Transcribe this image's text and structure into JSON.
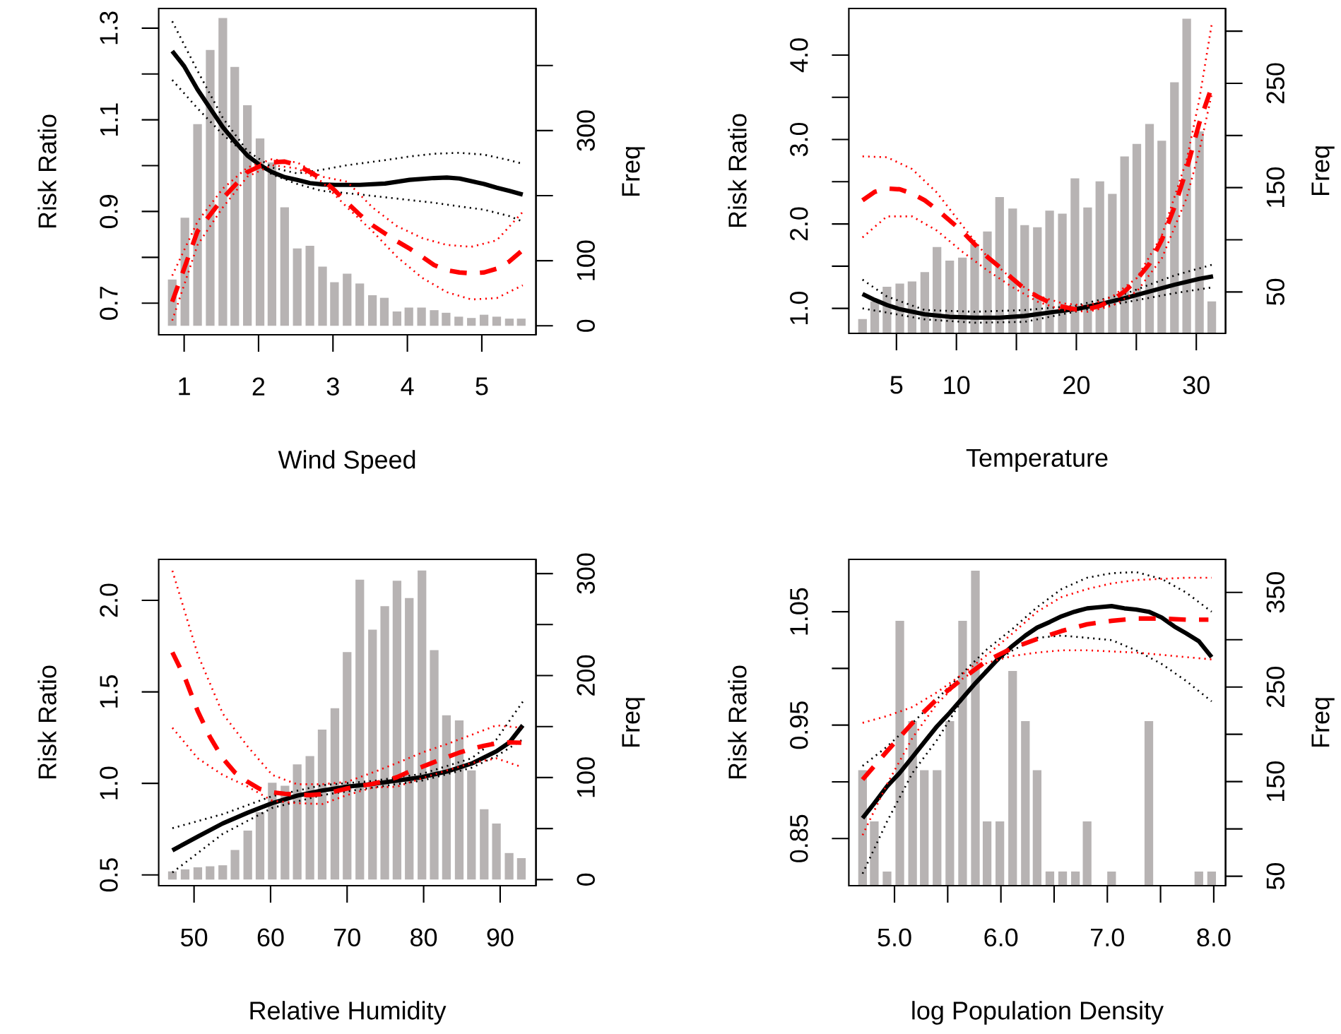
{
  "chart_data": [
    {
      "type": "line",
      "xlabel": "Wind Speed",
      "ylabel": "Risk Ratio",
      "y2label": "Freq",
      "xlim": [
        0.658,
        5.728
      ],
      "xticks": [
        1,
        2,
        3,
        4,
        5
      ],
      "ylim": [
        0.631,
        1.343
      ],
      "yticks": [
        0.7,
        {
          "value": 0.8,
          "label": null
        },
        0.9,
        {
          "value": 1.0,
          "label": null
        },
        1.1,
        {
          "value": 1.2,
          "label": null
        },
        1.3
      ],
      "y2lim": [
        -13.8,
        487.7
      ],
      "y2ticks": [
        0,
        100,
        {
          "value": 200,
          "label": null
        },
        300,
        {
          "value": 400,
          "label": null
        }
      ],
      "series": [
        {
          "type": "bar",
          "axis": "y2",
          "color": "#b7b3b3",
          "x": [
            0.84,
            1.01,
            1.18,
            1.35,
            1.52,
            1.68,
            1.85,
            2.02,
            2.18,
            2.35,
            2.52,
            2.69,
            2.86,
            3.02,
            3.19,
            3.36,
            3.53,
            3.69,
            3.86,
            4.02,
            4.19,
            4.36,
            4.52,
            4.69,
            4.86,
            5.03,
            5.2,
            5.37,
            5.53
          ],
          "values": [
            71,
            166,
            310,
            424,
            473,
            398,
            339,
            288,
            251,
            182,
            119,
            123,
            91,
            67,
            80,
            65,
            47,
            43,
            22,
            28,
            28,
            24,
            20,
            14,
            12,
            17,
            14,
            11,
            11
          ]
        },
        {
          "color": "#000000",
          "line_style": "solid",
          "x": [
            0.84,
            1.0,
            1.18,
            1.35,
            1.52,
            1.68,
            1.85,
            2.02,
            2.18,
            2.35,
            2.52,
            2.69,
            2.86,
            3.03,
            3.19,
            3.36,
            3.7,
            4.03,
            4.36,
            4.53,
            4.7,
            4.86,
            5.03,
            5.2,
            5.37,
            5.55
          ],
          "values": [
            1.25,
            1.217,
            1.166,
            1.125,
            1.084,
            1.053,
            1.022,
            1.001,
            0.986,
            0.975,
            0.969,
            0.962,
            0.959,
            0.958,
            0.958,
            0.958,
            0.961,
            0.969,
            0.973,
            0.974,
            0.972,
            0.966,
            0.96,
            0.952,
            0.945,
            0.937
          ]
        },
        {
          "color": "#000000",
          "line_style": "dotted",
          "x": [
            0.84,
            1.18,
            1.52,
            1.85,
            2.18,
            2.52,
            2.85,
            3.19,
            3.7,
            4.03,
            4.36,
            4.7,
            5.03,
            5.37,
            5.55
          ],
          "values": [
            1.315,
            1.207,
            1.104,
            1.032,
            0.996,
            0.983,
            0.991,
            1.001,
            1.012,
            1.02,
            1.026,
            1.028,
            1.024,
            1.012,
            1.004
          ]
        },
        {
          "color": "#000000",
          "line_style": "dotted",
          "x": [
            0.84,
            1.18,
            1.52,
            1.85,
            2.18,
            2.52,
            2.85,
            3.19,
            3.7,
            4.03,
            4.36,
            4.7,
            5.03,
            5.37,
            5.55
          ],
          "values": [
            1.187,
            1.125,
            1.068,
            1.022,
            0.981,
            0.96,
            0.945,
            0.94,
            0.931,
            0.925,
            0.919,
            0.911,
            0.904,
            0.89,
            0.878
          ]
        },
        {
          "color": "#ff0000",
          "line_style": "dashed",
          "x": [
            0.84,
            1.18,
            1.52,
            1.85,
            2.02,
            2.18,
            2.35,
            2.52,
            2.69,
            2.85,
            3.03,
            3.19,
            3.36,
            3.53,
            3.7,
            3.86,
            4.03,
            4.2,
            4.36,
            4.53,
            4.7,
            4.86,
            5.03,
            5.2,
            5.37,
            5.55
          ],
          "values": [
            0.703,
            0.857,
            0.929,
            0.986,
            0.999,
            1.007,
            1.009,
            1.001,
            0.986,
            0.971,
            0.945,
            0.919,
            0.893,
            0.87,
            0.852,
            0.835,
            0.819,
            0.801,
            0.783,
            0.772,
            0.767,
            0.765,
            0.767,
            0.775,
            0.791,
            0.816
          ]
        },
        {
          "color": "#ff0000",
          "line_style": "dotted",
          "x": [
            0.84,
            1.18,
            1.52,
            1.85,
            2.18,
            2.52,
            2.85,
            3.19,
            3.53,
            3.86,
            4.2,
            4.53,
            4.86,
            5.2,
            5.55
          ],
          "values": [
            0.76,
            0.878,
            0.95,
            0.996,
            1.014,
            1.007,
            0.976,
            0.965,
            0.909,
            0.868,
            0.842,
            0.827,
            0.823,
            0.837,
            0.899
          ]
        },
        {
          "color": "#ff0000",
          "line_style": "dotted",
          "x": [
            0.84,
            1.18,
            1.52,
            1.85,
            2.18,
            2.52,
            2.85,
            3.19,
            3.53,
            3.86,
            4.2,
            4.53,
            4.86,
            5.2,
            5.55
          ],
          "values": [
            0.662,
            0.827,
            0.909,
            0.976,
            1.001,
            0.994,
            0.965,
            0.909,
            0.857,
            0.801,
            0.755,
            0.724,
            0.708,
            0.711,
            0.739
          ]
        }
      ]
    },
    {
      "type": "line",
      "xlabel": "Temperature",
      "ylabel": "Risk Ratio",
      "y2label": "Freq",
      "xlim": [
        1.03,
        32.44
      ],
      "xticks": [
        5,
        10,
        {
          "value": 15,
          "label": null
        },
        20,
        {
          "value": 25,
          "label": null
        },
        30
      ],
      "ylim": [
        0.704,
        4.552
      ],
      "yticks": [
        {
          "value": 1.0,
          "label": "1.0"
        },
        {
          "value": 1.5,
          "label": null
        },
        {
          "value": 2.0,
          "label": "2.0"
        },
        {
          "value": 2.5,
          "label": null
        },
        {
          "value": 3.0,
          "label": "3.0"
        },
        {
          "value": 3.5,
          "label": null
        },
        {
          "value": 4.0,
          "label": "4.0"
        }
      ],
      "y2lim": [
        10.3,
        321.8
      ],
      "y2ticks": [
        50,
        {
          "value": 100,
          "label": null
        },
        150,
        {
          "value": 200,
          "label": null
        },
        250,
        {
          "value": 300,
          "label": null
        }
      ],
      "series": [
        {
          "type": "bar",
          "axis": "y2",
          "color": "#b7b3b3",
          "x": [
            2.17,
            3.19,
            4.21,
            5.28,
            6.3,
            7.36,
            8.38,
            9.44,
            10.5,
            11.52,
            12.58,
            13.6,
            14.69,
            15.69,
            16.75,
            17.77,
            18.83,
            19.88,
            20.94,
            21.96,
            23.0,
            24.02,
            25.04,
            26.1,
            27.12,
            28.18,
            29.2,
            30.26,
            31.29
          ],
          "values": [
            24,
            41,
            55,
            58,
            60,
            69,
            93,
            80,
            83,
            96,
            108,
            141,
            130,
            114,
            112,
            128,
            125,
            159,
            131,
            156,
            144,
            180,
            192,
            211,
            195,
            251,
            312,
            204,
            41
          ]
        },
        {
          "color": "#000000",
          "line_style": "solid",
          "x": [
            2.17,
            3.19,
            4.21,
            5.28,
            7.36,
            9.44,
            11.52,
            13.6,
            15.69,
            17.77,
            19.88,
            21.96,
            24.02,
            26.1,
            28.18,
            30.26,
            31.4
          ],
          "values": [
            1.17,
            1.1,
            1.04,
            0.99,
            0.93,
            0.9,
            0.89,
            0.89,
            0.91,
            0.95,
            0.99,
            1.05,
            1.12,
            1.2,
            1.28,
            1.35,
            1.38
          ]
        },
        {
          "color": "#000000",
          "line_style": "dotted",
          "x": [
            2.17,
            4.21,
            7.36,
            11.52,
            15.69,
            19.88,
            24.02,
            28.18,
            31.4
          ],
          "values": [
            1.34,
            1.14,
            0.98,
            0.96,
            0.98,
            1.03,
            1.17,
            1.39,
            1.52
          ]
        },
        {
          "color": "#000000",
          "line_style": "dotted",
          "x": [
            2.17,
            4.21,
            7.36,
            11.52,
            15.69,
            19.88,
            24.02,
            28.18,
            31.4
          ],
          "values": [
            1.0,
            0.95,
            0.87,
            0.83,
            0.84,
            0.96,
            1.07,
            1.18,
            1.25
          ]
        },
        {
          "color": "#ff0000",
          "line_style": "dashed",
          "x": [
            2.17,
            3.19,
            4.21,
            5.28,
            6.3,
            7.36,
            8.38,
            9.44,
            10.5,
            11.52,
            12.58,
            13.6,
            14.69,
            15.69,
            16.75,
            17.77,
            18.83,
            19.88,
            20.94,
            21.96,
            23.0,
            24.02,
            25.04,
            26.1,
            27.12,
            28.18,
            29.2,
            30.26,
            31.21
          ],
          "values": [
            2.28,
            2.38,
            2.42,
            2.41,
            2.36,
            2.28,
            2.17,
            2.04,
            1.91,
            1.76,
            1.61,
            1.49,
            1.35,
            1.23,
            1.14,
            1.07,
            1.02,
            0.99,
            0.99,
            1.03,
            1.1,
            1.2,
            1.34,
            1.53,
            1.81,
            2.2,
            2.65,
            3.2,
            3.59
          ]
        },
        {
          "color": "#ff0000",
          "line_style": "dotted",
          "x": [
            2.17,
            4.21,
            6.3,
            8.38,
            10.5,
            12.58,
            14.69,
            16.75,
            18.83,
            20.94,
            23.0,
            25.04,
            27.12,
            29.2,
            30.26,
            31.29
          ],
          "values": [
            2.8,
            2.79,
            2.65,
            2.37,
            1.98,
            1.61,
            1.34,
            1.15,
            1.06,
            1.03,
            1.14,
            1.36,
            1.86,
            2.76,
            3.48,
            4.37
          ]
        },
        {
          "color": "#ff0000",
          "line_style": "dotted",
          "x": [
            2.17,
            4.21,
            6.3,
            8.38,
            10.5,
            12.58,
            14.69,
            16.75,
            18.83,
            20.94,
            23.0,
            25.04,
            27.12,
            29.2,
            30.26,
            31.29
          ],
          "values": [
            1.84,
            2.09,
            2.09,
            1.92,
            1.67,
            1.45,
            1.25,
            1.08,
            0.98,
            0.96,
            1.03,
            1.2,
            1.59,
            2.31,
            2.87,
            3.54
          ]
        }
      ]
    },
    {
      "type": "line",
      "xlabel": "Relative Humidity",
      "ylabel": "Risk Ratio",
      "y2label": "Freq",
      "xlim": [
        45.38,
        94.68
      ],
      "xticks": [
        50,
        60,
        70,
        80,
        90
      ],
      "ylim": [
        0.441,
        2.224
      ],
      "yticks": [
        0.5,
        {
          "value": 1.0,
          "label": "1.0"
        },
        1.5,
        {
          "value": 2.0,
          "label": "2.0"
        }
      ],
      "y2lim": [
        -6.0,
        313.9
      ],
      "y2ticks": [
        0,
        {
          "value": 50,
          "label": null
        },
        100,
        {
          "value": 150,
          "label": null
        },
        200,
        {
          "value": 250,
          "label": null
        },
        300
      ],
      "series": [
        {
          "type": "bar",
          "axis": "y2",
          "color": "#b7b3b3",
          "x": [
            47.17,
            48.83,
            50.49,
            52.09,
            53.75,
            55.35,
            57.02,
            58.62,
            60.22,
            61.88,
            63.48,
            65.14,
            66.74,
            68.4,
            70.0,
            71.66,
            73.32,
            74.92,
            76.52,
            78.12,
            79.78,
            81.38,
            82.98,
            84.65,
            86.25,
            87.91,
            89.51,
            91.17,
            92.77
          ],
          "values": [
            8,
            10,
            12,
            13,
            14,
            29,
            48,
            66,
            95,
            92,
            113,
            121,
            147,
            168,
            223,
            294,
            245,
            268,
            293,
            276,
            303,
            225,
            161,
            156,
            107,
            69,
            55,
            26,
            21
          ]
        },
        {
          "color": "#000000",
          "line_style": "solid",
          "x": [
            47.17,
            50.49,
            53.75,
            57.02,
            60.22,
            63.48,
            66.74,
            70.0,
            73.32,
            76.52,
            79.78,
            82.98,
            86.25,
            89.51,
            91.17,
            92.95
          ],
          "values": [
            0.634,
            0.709,
            0.781,
            0.84,
            0.892,
            0.933,
            0.961,
            0.982,
            0.997,
            1.015,
            1.034,
            1.064,
            1.108,
            1.175,
            1.222,
            1.317
          ]
        },
        {
          "color": "#000000",
          "line_style": "dotted",
          "x": [
            47.17,
            53.75,
            60.22,
            66.74,
            73.32,
            79.78,
            86.25,
            89.51,
            92.95
          ],
          "values": [
            0.755,
            0.832,
            0.93,
            0.99,
            1.013,
            1.052,
            1.137,
            1.24,
            1.446
          ]
        },
        {
          "color": "#000000",
          "line_style": "dotted",
          "x": [
            47.17,
            53.75,
            60.22,
            66.74,
            73.32,
            79.78,
            86.25,
            89.51,
            92.95
          ],
          "values": [
            0.513,
            0.724,
            0.866,
            0.936,
            0.977,
            1.015,
            1.085,
            1.149,
            1.24
          ]
        },
        {
          "color": "#ff0000",
          "line_style": "dashed",
          "x": [
            47.17,
            48.83,
            50.49,
            52.09,
            53.75,
            55.35,
            57.02,
            58.62,
            60.22,
            61.88,
            63.48,
            65.14,
            66.74,
            68.4,
            70.0,
            71.66,
            73.32,
            74.92,
            76.52,
            78.12,
            79.78,
            81.38,
            82.98,
            84.65,
            86.25,
            87.91,
            89.51,
            91.17,
            92.77
          ],
          "values": [
            1.716,
            1.575,
            1.394,
            1.253,
            1.137,
            1.059,
            1.008,
            0.969,
            0.951,
            0.943,
            0.938,
            0.936,
            0.941,
            0.956,
            0.972,
            0.985,
            0.997,
            1.013,
            1.034,
            1.064,
            1.09,
            1.116,
            1.142,
            1.168,
            1.188,
            1.206,
            1.219,
            1.224,
            1.222
          ]
        },
        {
          "color": "#ff0000",
          "line_style": "dotted",
          "x": [
            47.17,
            50.49,
            53.75,
            57.02,
            60.22,
            63.48,
            66.74,
            70.0,
            73.32,
            76.52,
            79.78,
            82.98,
            86.25,
            89.51,
            92.77
          ],
          "values": [
            2.162,
            1.704,
            1.381,
            1.201,
            1.046,
            0.995,
            0.995,
            1.008,
            1.059,
            1.111,
            1.168,
            1.214,
            1.265,
            1.317,
            1.304
          ]
        },
        {
          "color": "#ff0000",
          "line_style": "dotted",
          "x": [
            47.17,
            50.49,
            53.75,
            57.02,
            60.22,
            63.48,
            66.74,
            70.0,
            73.32,
            76.52,
            79.78,
            82.98,
            86.25,
            89.51,
            92.77
          ],
          "values": [
            1.304,
            1.137,
            1.046,
            0.982,
            0.905,
            0.892,
            0.887,
            0.936,
            0.977,
            0.982,
            1.028,
            1.07,
            1.111,
            1.137,
            1.09
          ]
        }
      ]
    },
    {
      "type": "line",
      "xlabel": "log Population Density",
      "ylabel": "Risk Ratio",
      "y2label": "Freq",
      "xlim": [
        4.571,
        8.111
      ],
      "xticks": [
        {
          "value": 5.0,
          "label": "5.0"
        },
        {
          "value": 5.5,
          "label": null
        },
        {
          "value": 6.0,
          "label": "6.0"
        },
        {
          "value": 6.5,
          "label": null
        },
        {
          "value": 7.0,
          "label": "7.0"
        },
        {
          "value": 7.5,
          "label": null
        },
        {
          "value": 8.0,
          "label": "8.0"
        }
      ],
      "ylim": [
        0.8084,
        1.0962
      ],
      "yticks": [
        0.85,
        {
          "value": 0.9,
          "label": null
        },
        0.95,
        {
          "value": 1.0,
          "label": null
        },
        1.05
      ],
      "y2lim": [
        40.0,
        384.9
      ],
      "y2ticks": [
        50,
        {
          "value": 100,
          "label": null
        },
        150,
        {
          "value": 200,
          "label": null
        },
        250,
        {
          "value": 300,
          "label": null
        },
        350
      ],
      "series": [
        {
          "type": "bar",
          "axis": "y2",
          "color": "#b7b3b3",
          "x": [
            4.7,
            4.81,
            4.93,
            5.05,
            5.17,
            5.28,
            5.4,
            5.52,
            5.64,
            5.76,
            5.87,
            5.99,
            6.11,
            6.23,
            6.34,
            6.46,
            6.58,
            6.7,
            6.81,
            7.04,
            7.39,
            7.86,
            7.98
          ],
          "values": [
            162,
            108,
            55,
            320,
            214,
            162,
            162,
            214,
            320,
            373,
            108,
            108,
            267,
            214,
            162,
            55,
            55,
            55,
            108,
            55,
            214,
            55,
            55
          ]
        },
        {
          "color": "#000000",
          "line_style": "solid",
          "x": [
            4.7,
            4.81,
            4.93,
            5.05,
            5.17,
            5.28,
            5.4,
            5.52,
            5.64,
            5.76,
            5.87,
            5.99,
            6.11,
            6.23,
            6.34,
            6.46,
            6.57,
            6.69,
            6.81,
            6.92,
            7.04,
            7.16,
            7.27,
            7.39,
            7.51,
            7.63,
            7.74,
            7.86,
            7.98
          ],
          "values": [
            0.868,
            0.881,
            0.896,
            0.908,
            0.922,
            0.935,
            0.949,
            0.961,
            0.974,
            0.987,
            0.998,
            1.01,
            1.02,
            1.029,
            1.036,
            1.041,
            1.046,
            1.05,
            1.053,
            1.054,
            1.055,
            1.053,
            1.052,
            1.05,
            1.045,
            1.037,
            1.031,
            1.024,
            1.01
          ]
        },
        {
          "color": "#000000",
          "line_style": "dotted",
          "x": [
            4.7,
            4.93,
            5.17,
            5.4,
            5.64,
            5.87,
            6.11,
            6.34,
            6.57,
            6.81,
            7.04,
            7.27,
            7.51,
            7.74,
            7.98
          ],
          "values": [
            0.914,
            0.931,
            0.952,
            0.973,
            0.996,
            1.017,
            1.035,
            1.054,
            1.07,
            1.08,
            1.084,
            1.085,
            1.079,
            1.067,
            1.05
          ]
        },
        {
          "color": "#000000",
          "line_style": "dotted",
          "x": [
            4.7,
            4.93,
            5.17,
            5.4,
            5.64,
            5.87,
            6.11,
            6.34,
            6.57,
            6.81,
            7.04,
            7.27,
            7.51,
            7.74,
            7.98
          ],
          "values": [
            0.819,
            0.865,
            0.908,
            0.937,
            0.973,
            1.0,
            1.016,
            1.027,
            1.029,
            1.027,
            1.025,
            1.016,
            1.004,
            0.989,
            0.971
          ]
        },
        {
          "color": "#ff0000",
          "line_style": "dashed",
          "x": [
            4.7,
            4.93,
            5.17,
            5.4,
            5.64,
            5.87,
            6.11,
            6.34,
            6.57,
            6.81,
            7.04,
            7.27,
            7.51,
            7.74,
            7.95
          ],
          "values": [
            0.902,
            0.927,
            0.952,
            0.973,
            0.991,
            1.007,
            1.018,
            1.026,
            1.033,
            1.039,
            1.042,
            1.044,
            1.044,
            1.043,
            1.043
          ]
        },
        {
          "color": "#ff0000",
          "line_style": "dotted",
          "x": [
            4.7,
            4.93,
            5.17,
            5.4,
            5.64,
            5.87,
            6.11,
            6.34,
            6.57,
            6.81,
            7.04,
            7.27,
            7.51,
            7.74,
            7.98
          ],
          "values": [
            0.952,
            0.958,
            0.966,
            0.979,
            0.995,
            1.012,
            1.031,
            1.05,
            1.063,
            1.07,
            1.075,
            1.078,
            1.079,
            1.08,
            1.08
          ]
        },
        {
          "color": "#ff0000",
          "line_style": "dotted",
          "x": [
            4.7,
            4.93,
            5.17,
            5.4,
            5.64,
            5.87,
            6.11,
            6.34,
            6.57,
            6.81,
            7.04,
            7.27,
            7.51,
            7.74,
            7.98
          ],
          "values": [
            0.853,
            0.898,
            0.939,
            0.969,
            0.991,
            1.005,
            1.011,
            1.014,
            1.016,
            1.016,
            1.015,
            1.014,
            1.012,
            1.01,
            1.008
          ]
        }
      ]
    }
  ]
}
